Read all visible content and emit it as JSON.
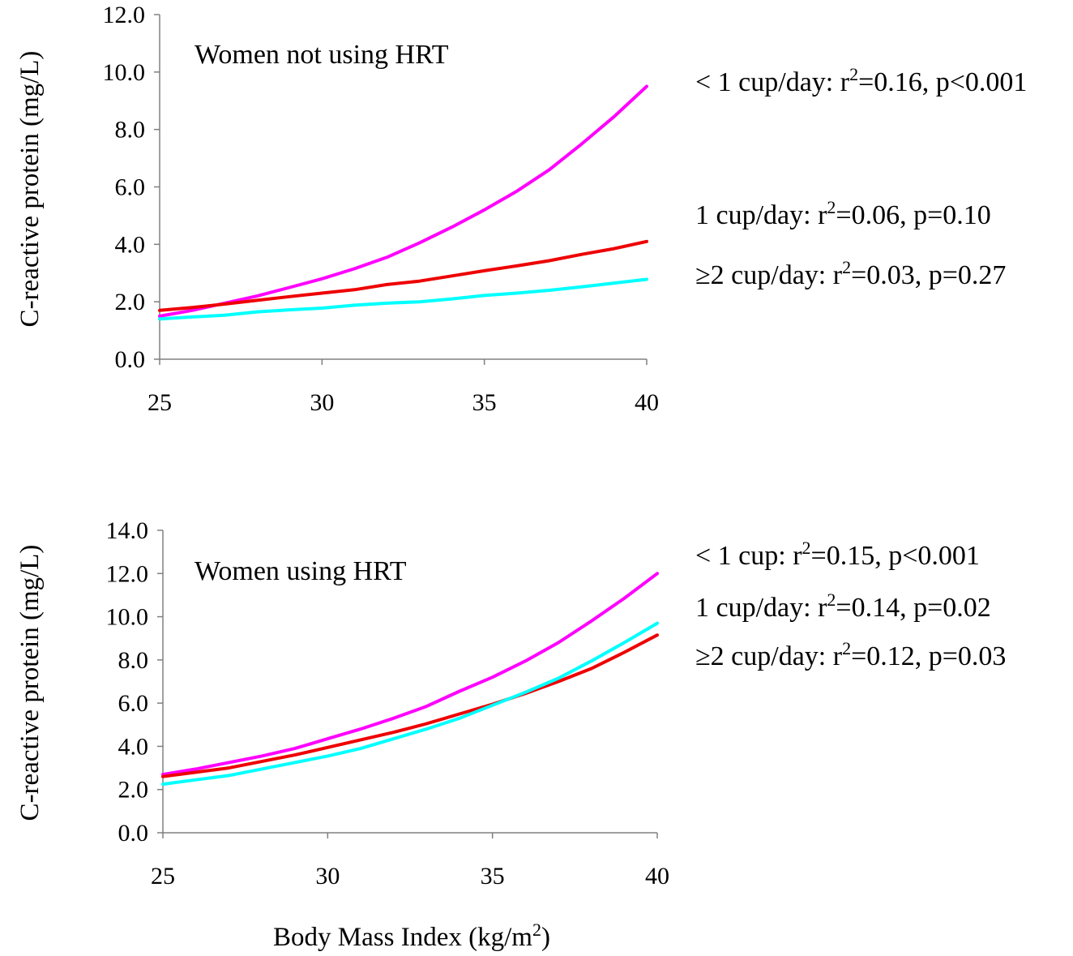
{
  "colors": {
    "lt1": "#ff00ff",
    "one": "#ee0000",
    "ge2": "#00ffff",
    "axis": "#808080"
  },
  "chart_data": [
    {
      "type": "line",
      "title": "Women not using HRT",
      "ylabel": "C-reactive protein (mg/L)",
      "xlabel": "",
      "xlim": [
        25,
        40
      ],
      "ylim": [
        0,
        12
      ],
      "xticks": [
        "25",
        "30",
        "35",
        "40"
      ],
      "yticks": [
        "0.0",
        "2.0",
        "4.0",
        "6.0",
        "8.0",
        "10.0",
        "12.0"
      ],
      "grid": false,
      "x": [
        25,
        26,
        27,
        28,
        29,
        30,
        31,
        32,
        33,
        34,
        35,
        36,
        37,
        38,
        39,
        40
      ],
      "series": [
        {
          "key": "lt1",
          "color": "#ff00ff",
          "values": [
            1.5,
            1.7,
            1.95,
            2.2,
            2.5,
            2.8,
            3.15,
            3.55,
            4.05,
            4.6,
            5.2,
            5.85,
            6.6,
            7.5,
            8.45,
            9.5
          ]
        },
        {
          "key": "one",
          "color": "#ee0000",
          "values": [
            1.7,
            1.8,
            1.92,
            2.05,
            2.18,
            2.3,
            2.42,
            2.6,
            2.72,
            2.9,
            3.08,
            3.25,
            3.43,
            3.65,
            3.85,
            4.1
          ]
        },
        {
          "key": "ge2",
          "color": "#00ffff",
          "values": [
            1.4,
            1.47,
            1.53,
            1.65,
            1.72,
            1.78,
            1.88,
            1.95,
            2.0,
            2.1,
            2.22,
            2.3,
            2.4,
            2.52,
            2.65,
            2.78
          ]
        }
      ],
      "annotations": [
        {
          "prefix": "< 1 cup/day: r",
          "sup": "2",
          "suffix": "=0.16, p<0.001"
        },
        {
          "prefix": "1 cup/day: r",
          "sup": "2",
          "suffix": "=0.06, p=0.10"
        },
        {
          "prefix": "≥2 cup/day: r",
          "sup": "2",
          "suffix": "=0.03, p=0.27"
        }
      ]
    },
    {
      "type": "line",
      "title": "Women using HRT",
      "ylabel": "C-reactive protein (mg/L)",
      "xlabel": "Body Mass Index (kg/m",
      "xlabel_sup": "2",
      "xlabel_end": ")",
      "xlim": [
        25,
        40
      ],
      "ylim": [
        0,
        14
      ],
      "xticks": [
        "25",
        "30",
        "35",
        "40"
      ],
      "yticks": [
        "0.0",
        "2.0",
        "4.0",
        "6.0",
        "8.0",
        "10.0",
        "12.0",
        "14.0"
      ],
      "grid": false,
      "x": [
        25,
        26,
        27,
        28,
        29,
        30,
        31,
        32,
        33,
        34,
        35,
        36,
        37,
        38,
        39,
        40
      ],
      "series": [
        {
          "key": "lt1",
          "color": "#ff00ff",
          "values": [
            2.7,
            2.95,
            3.25,
            3.55,
            3.9,
            4.35,
            4.8,
            5.3,
            5.85,
            6.55,
            7.2,
            7.95,
            8.8,
            9.8,
            10.85,
            12.0
          ]
        },
        {
          "key": "one",
          "color": "#ee0000",
          "values": [
            2.6,
            2.8,
            3.0,
            3.3,
            3.6,
            3.95,
            4.3,
            4.65,
            5.05,
            5.5,
            5.95,
            6.45,
            7.0,
            7.6,
            8.35,
            9.15
          ]
        },
        {
          "key": "ge2",
          "color": "#00ffff",
          "values": [
            2.25,
            2.45,
            2.65,
            2.95,
            3.25,
            3.55,
            3.9,
            4.35,
            4.8,
            5.3,
            5.9,
            6.5,
            7.15,
            7.95,
            8.8,
            9.7
          ]
        }
      ],
      "annotations": [
        {
          "prefix": "< 1 cup: r",
          "sup": "2",
          "suffix": "=0.15, p<0.001"
        },
        {
          "prefix": "1 cup/day: r",
          "sup": "2",
          "suffix": "=0.14, p=0.02"
        },
        {
          "prefix": "≥2 cup/day: r",
          "sup": "2",
          "suffix": "=0.12, p=0.03"
        }
      ]
    }
  ]
}
